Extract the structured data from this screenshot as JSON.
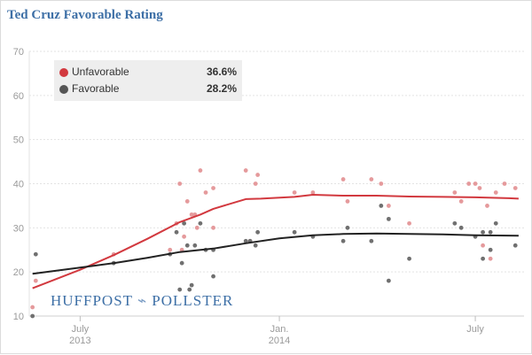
{
  "chart_data": {
    "type": "scatter",
    "title": "Ted Cruz Favorable Rating",
    "ylim": [
      10,
      70
    ],
    "yticks": [
      10,
      20,
      30,
      40,
      50,
      60,
      70
    ],
    "xlim": [
      "2013-05-15",
      "2014-08-15"
    ],
    "xticks": [
      {
        "date": "2013-07-01",
        "label": "July",
        "sublabel": "2013"
      },
      {
        "date": "2014-01-01",
        "label": "Jan.",
        "sublabel": "2014"
      },
      {
        "date": "2014-07-01",
        "label": "July",
        "sublabel": ""
      }
    ],
    "grid": true,
    "legend_position": "top-left",
    "series": [
      {
        "name": "Unfavorable",
        "value_label": "36.6%",
        "color": "#d2393f",
        "dot_color": "#e59a9c",
        "trend": [
          {
            "x": "2013-05-18",
            "y": 16.3
          },
          {
            "x": "2013-07-01",
            "y": 20.5
          },
          {
            "x": "2013-08-01",
            "y": 23.8
          },
          {
            "x": "2013-09-01",
            "y": 27.5
          },
          {
            "x": "2013-10-01",
            "y": 31.3
          },
          {
            "x": "2013-10-20",
            "y": 33.0
          },
          {
            "x": "2013-11-01",
            "y": 34.3
          },
          {
            "x": "2013-12-01",
            "y": 36.5
          },
          {
            "x": "2013-12-15",
            "y": 36.6
          },
          {
            "x": "2014-01-15",
            "y": 37.0
          },
          {
            "x": "2014-02-01",
            "y": 37.5
          },
          {
            "x": "2014-03-01",
            "y": 37.3
          },
          {
            "x": "2014-04-01",
            "y": 37.3
          },
          {
            "x": "2014-05-01",
            "y": 37.1
          },
          {
            "x": "2014-06-01",
            "y": 37.0
          },
          {
            "x": "2014-07-01",
            "y": 36.9
          },
          {
            "x": "2014-08-01",
            "y": 36.7
          },
          {
            "x": "2014-08-10",
            "y": 36.6
          }
        ],
        "points": [
          {
            "x": "2013-05-18",
            "y": 12
          },
          {
            "x": "2013-05-21",
            "y": 18
          },
          {
            "x": "2013-08-01",
            "y": 24
          },
          {
            "x": "2013-09-22",
            "y": 25
          },
          {
            "x": "2013-09-28",
            "y": 31
          },
          {
            "x": "2013-10-01",
            "y": 40
          },
          {
            "x": "2013-10-03",
            "y": 25
          },
          {
            "x": "2013-10-05",
            "y": 28
          },
          {
            "x": "2013-10-08",
            "y": 36
          },
          {
            "x": "2013-10-12",
            "y": 33
          },
          {
            "x": "2013-10-15",
            "y": 33
          },
          {
            "x": "2013-10-17",
            "y": 30
          },
          {
            "x": "2013-10-20",
            "y": 43
          },
          {
            "x": "2013-10-25",
            "y": 38
          },
          {
            "x": "2013-11-01",
            "y": 39
          },
          {
            "x": "2013-11-01",
            "y": 30
          },
          {
            "x": "2013-12-01",
            "y": 43
          },
          {
            "x": "2013-12-05",
            "y": 27
          },
          {
            "x": "2013-12-10",
            "y": 40
          },
          {
            "x": "2013-12-12",
            "y": 42
          },
          {
            "x": "2014-01-15",
            "y": 38
          },
          {
            "x": "2014-02-01",
            "y": 38
          },
          {
            "x": "2014-03-01",
            "y": 41
          },
          {
            "x": "2014-03-05",
            "y": 36
          },
          {
            "x": "2014-03-27",
            "y": 41
          },
          {
            "x": "2014-04-05",
            "y": 40
          },
          {
            "x": "2014-04-12",
            "y": 35
          },
          {
            "x": "2014-05-01",
            "y": 31
          },
          {
            "x": "2014-06-12",
            "y": 38
          },
          {
            "x": "2014-06-18",
            "y": 36
          },
          {
            "x": "2014-06-25",
            "y": 40
          },
          {
            "x": "2014-07-01",
            "y": 40
          },
          {
            "x": "2014-07-05",
            "y": 39
          },
          {
            "x": "2014-07-08",
            "y": 26
          },
          {
            "x": "2014-07-12",
            "y": 35
          },
          {
            "x": "2014-07-15",
            "y": 23
          },
          {
            "x": "2014-07-20",
            "y": 38
          },
          {
            "x": "2014-07-28",
            "y": 40
          },
          {
            "x": "2014-08-07",
            "y": 39
          }
        ]
      },
      {
        "name": "Favorable",
        "value_label": "28.2%",
        "color": "#222222",
        "dot_color": "#707070",
        "trend": [
          {
            "x": "2013-05-18",
            "y": 19.6
          },
          {
            "x": "2013-07-01",
            "y": 21.0
          },
          {
            "x": "2013-08-01",
            "y": 22.0
          },
          {
            "x": "2013-09-01",
            "y": 23.2
          },
          {
            "x": "2013-10-01",
            "y": 24.5
          },
          {
            "x": "2013-11-01",
            "y": 25.3
          },
          {
            "x": "2013-12-01",
            "y": 26.5
          },
          {
            "x": "2014-01-01",
            "y": 27.6
          },
          {
            "x": "2014-02-01",
            "y": 28.3
          },
          {
            "x": "2014-03-01",
            "y": 28.6
          },
          {
            "x": "2014-04-01",
            "y": 28.7
          },
          {
            "x": "2014-05-01",
            "y": 28.6
          },
          {
            "x": "2014-06-01",
            "y": 28.5
          },
          {
            "x": "2014-07-01",
            "y": 28.3
          },
          {
            "x": "2014-08-10",
            "y": 28.2
          }
        ],
        "points": [
          {
            "x": "2013-05-18",
            "y": 10
          },
          {
            "x": "2013-05-21",
            "y": 24
          },
          {
            "x": "2013-08-01",
            "y": 22
          },
          {
            "x": "2013-09-22",
            "y": 24
          },
          {
            "x": "2013-09-28",
            "y": 29
          },
          {
            "x": "2013-10-01",
            "y": 16
          },
          {
            "x": "2013-10-03",
            "y": 22
          },
          {
            "x": "2013-10-05",
            "y": 31
          },
          {
            "x": "2013-10-08",
            "y": 26
          },
          {
            "x": "2013-10-10",
            "y": 16
          },
          {
            "x": "2013-10-12",
            "y": 17
          },
          {
            "x": "2013-10-15",
            "y": 26
          },
          {
            "x": "2013-10-20",
            "y": 31
          },
          {
            "x": "2013-10-25",
            "y": 25
          },
          {
            "x": "2013-11-01",
            "y": 19
          },
          {
            "x": "2013-11-01",
            "y": 25
          },
          {
            "x": "2013-12-01",
            "y": 27
          },
          {
            "x": "2013-12-05",
            "y": 27
          },
          {
            "x": "2013-12-10",
            "y": 26
          },
          {
            "x": "2013-12-12",
            "y": 29
          },
          {
            "x": "2014-01-15",
            "y": 29
          },
          {
            "x": "2014-02-01",
            "y": 28
          },
          {
            "x": "2014-03-01",
            "y": 27
          },
          {
            "x": "2014-03-05",
            "y": 30
          },
          {
            "x": "2014-03-27",
            "y": 27
          },
          {
            "x": "2014-04-05",
            "y": 35
          },
          {
            "x": "2014-04-12",
            "y": 32
          },
          {
            "x": "2014-04-12",
            "y": 18
          },
          {
            "x": "2014-05-01",
            "y": 23
          },
          {
            "x": "2014-06-12",
            "y": 31
          },
          {
            "x": "2014-06-18",
            "y": 30
          },
          {
            "x": "2014-07-01",
            "y": 28
          },
          {
            "x": "2014-07-08",
            "y": 29
          },
          {
            "x": "2014-07-08",
            "y": 23
          },
          {
            "x": "2014-07-15",
            "y": 29
          },
          {
            "x": "2014-07-15",
            "y": 25
          },
          {
            "x": "2014-07-20",
            "y": 31
          },
          {
            "x": "2014-08-07",
            "y": 26
          }
        ]
      }
    ]
  },
  "watermark": {
    "left": "HUFFPOST",
    "mark": "⌁",
    "right": "POLLSTER"
  }
}
